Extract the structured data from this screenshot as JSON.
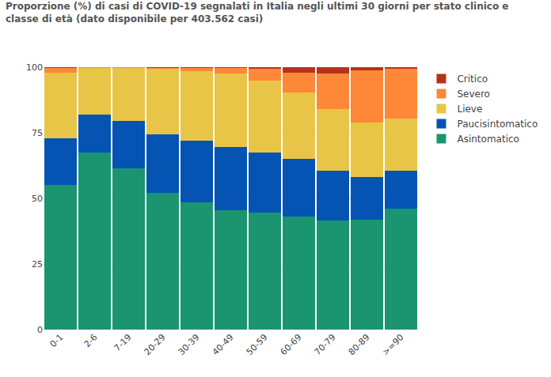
{
  "chart_data": {
    "type": "bar",
    "stacked": true,
    "title": "Proporzione (%) di casi di COVID-19 segnalati in Italia negli ultimi 30 giorni per stato clinico e classe di età (dato disponibile per 403.562 casi)",
    "categories": [
      "0-1",
      "2-6",
      "7-19",
      "20-29",
      "30-39",
      "40-49",
      "50-59",
      "60-69",
      "70-79",
      "80-89",
      ">=90"
    ],
    "series": [
      {
        "name": "Asintomatico",
        "color": "#1a9570",
        "values": [
          55,
          67.5,
          61.5,
          52,
          48.5,
          45.5,
          44.5,
          43,
          41.5,
          42,
          46
        ]
      },
      {
        "name": "Paucisintomatico",
        "color": "#0553b3",
        "values": [
          18,
          14.5,
          18,
          22.5,
          23.5,
          24,
          23,
          22,
          19,
          16,
          14.5
        ]
      },
      {
        "name": "Lieve",
        "color": "#e8c547",
        "values": [
          25,
          17.8,
          20.4,
          25,
          26.5,
          28,
          27.5,
          25.5,
          23.5,
          21,
          20
        ]
      },
      {
        "name": "Severo",
        "color": "#fd8838",
        "values": [
          1.7,
          0.2,
          0.1,
          0.4,
          1.3,
          2.3,
          4.5,
          7.5,
          13.5,
          19.7,
          19
        ]
      },
      {
        "name": "Critico",
        "color": "#b8321a",
        "values": [
          0.3,
          0,
          0,
          0.1,
          0.2,
          0.2,
          0.5,
          2,
          2.5,
          1.3,
          0.5
        ]
      }
    ],
    "ylim": [
      0,
      100
    ],
    "yticks": [
      0,
      25,
      50,
      75,
      100
    ],
    "grid": true,
    "legend": "right"
  }
}
